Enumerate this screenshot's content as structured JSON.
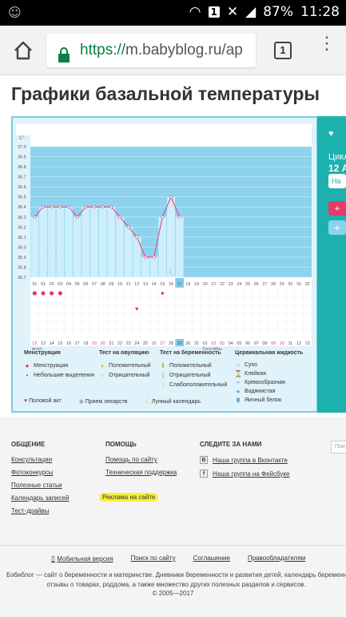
{
  "status_bar": {
    "battery": "87%",
    "time": "11:28",
    "notification_badge": "1"
  },
  "browser": {
    "url_scheme": "https://",
    "url_rest": "m.babyblog.ru/ap",
    "tab_count": "1"
  },
  "page": {
    "title": "Графики базальной температуры"
  },
  "side_panel": {
    "label_cycle": "Цикл",
    "label_date": "12 А",
    "label_button": "На"
  },
  "chart_data": {
    "type": "line",
    "ylabel": "C°",
    "y_ticks": [
      "37.0",
      "36.9",
      "36.8",
      "36.7",
      "36.6",
      "36.5",
      "36.4",
      "36.3",
      "36.2",
      "36.1",
      "36.0",
      "35.9",
      "35.8",
      "35.7"
    ],
    "ylim": [
      35.7,
      37.0
    ],
    "day_labels": [
      "31",
      "01",
      "02",
      "03",
      "04",
      "05",
      "06",
      "07",
      "08",
      "09",
      "10",
      "11",
      "12",
      "13",
      "14",
      "15",
      "16",
      "17",
      "18",
      "19",
      "20",
      "21",
      "22",
      "23",
      "24",
      "25",
      "26",
      "27",
      "28",
      "29",
      "30",
      "31",
      "32"
    ],
    "date_labels": [
      "12",
      "13",
      "14",
      "15",
      "16",
      "17",
      "18",
      "19",
      "20",
      "21",
      "22",
      "23",
      "24",
      "25",
      "26",
      "27",
      "28",
      "29",
      "30",
      "31",
      "01",
      "02",
      "03",
      "04",
      "05",
      "06",
      "07",
      "08",
      "09",
      "10",
      "11",
      "12",
      "13"
    ],
    "date_red_indices": [
      0,
      7,
      8,
      14,
      15,
      21,
      22,
      28,
      29
    ],
    "highlight_day_index": 17,
    "month_left": "вгуст",
    "month_right": "Сентябрь",
    "temperatures": [
      36.3,
      36.4,
      36.4,
      36.4,
      36.4,
      36.3,
      36.4,
      36.4,
      36.4,
      36.4,
      36.3,
      36.2,
      36.1,
      35.9,
      35.9,
      36.3,
      36.5,
      36.3
    ],
    "menstruation_days": [
      0,
      1,
      2,
      3
    ],
    "spotting_days": [
      15
    ],
    "intercourse_days": [
      12
    ],
    "lunar_day": 16,
    "colors": {
      "filled_area": "#8dd3ee",
      "bar": "#cdeefc",
      "line": "#e53a6c",
      "highlight": "#7fcbe6",
      "red": "#e53a6c"
    }
  },
  "legend": {
    "col1": {
      "header": "Менструация",
      "items": [
        "Менструация",
        "Небольшие выделения"
      ]
    },
    "col2": {
      "header": "Тест на овуляцию",
      "items": [
        "Положительный",
        "Отрицательный"
      ]
    },
    "col3": {
      "header": "Тест на беременность",
      "items": [
        "Положительный",
        "Отрицательный",
        "Слабоположительный"
      ]
    },
    "col4": {
      "header": "Цервикальная жидкость",
      "items": [
        "Сухо",
        "Клейкая",
        "Кремообразная",
        "Водянистая",
        "Яичный белок"
      ]
    },
    "bottom": [
      "Половой акт",
      "Прием лекарств",
      "Лунный календарь"
    ]
  },
  "footer": {
    "col1": {
      "header": "ОБЩЕНИЕ",
      "links": [
        "Консультации",
        "Фотоконкурсы",
        "Полезные статьи",
        "Календарь записей",
        "Тест-драйвы"
      ]
    },
    "col2": {
      "header": "ПОМОЩЬ",
      "links": [
        "Помощь по сайту",
        "Техническая поддержка"
      ],
      "highlight_link": "Реклама на сайте"
    },
    "col3": {
      "header": "СЛЕДИТЕ ЗА НАМИ",
      "links": [
        "Наша группа в Вконтакте",
        "Наша группа на Фейсбуке"
      ]
    },
    "search_stub": "Пои",
    "bottom_links": [
      "Мобильная версия",
      "Поиск по сайту",
      "Соглашение",
      "Правообладателям"
    ],
    "description_line1": "Бэбиблог — сайт о беременности и материнстве. Дневники беременности и развития детей, календарь беременности",
    "description_line2": "отзывы о товарах, роддома, а также множество других полезных разделов и сервисов.",
    "copyright": "© 2005—2017"
  }
}
